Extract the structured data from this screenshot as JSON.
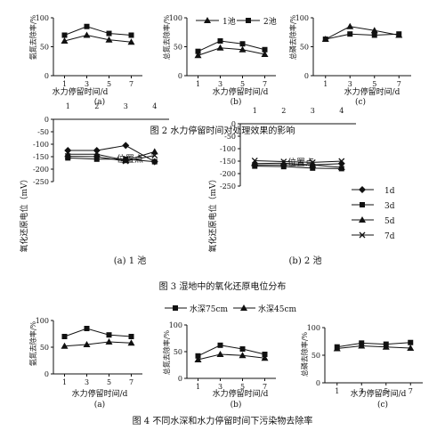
{
  "fig2": {
    "caption": "图 2   水力停留时间对处理效果的影响",
    "legend": [
      "1池",
      "2池"
    ],
    "xlabel": "水力停留时间/d",
    "xticks": [
      "1",
      "3",
      "5",
      "7"
    ],
    "yticks": [
      "0",
      "50",
      "100"
    ],
    "panels": [
      {
        "letter": "(a)",
        "ylabel": "氨氮去除率/%"
      },
      {
        "letter": "(b)",
        "ylabel": "总氮去除率/%"
      },
      {
        "letter": "(c)",
        "ylabel": "总磷去除率/%"
      }
    ]
  },
  "fig3": {
    "caption": "图 3   湿地中的氧化还原电位分布",
    "position_label": "位置点",
    "ylabel": "氧化还原电位（mV）",
    "xticks": [
      "1",
      "2",
      "3",
      "4"
    ],
    "yticks": [
      "0",
      "-50",
      "-100",
      "-150",
      "-200",
      "-250"
    ],
    "panels": [
      {
        "letter": "(a) 1 池"
      },
      {
        "letter": "(b) 2 池"
      }
    ],
    "legend": [
      "1d",
      "3d",
      "5d",
      "7d"
    ]
  },
  "fig4": {
    "caption": "图 4   不同水深和水力停留时间下污染物去除率",
    "legend": [
      "水深75cm",
      "水深45cm"
    ],
    "xlabel": "水力停留时间/d",
    "xticks": [
      "1",
      "3",
      "5",
      "7"
    ],
    "yticks": [
      "0",
      "50",
      "100"
    ],
    "panels": [
      {
        "letter": "(a)",
        "ylabel": "氨氮去除率/%"
      },
      {
        "letter": "(b)",
        "ylabel": "总氮去除率/%"
      },
      {
        "letter": "(c)",
        "ylabel": "总磷去除率/%"
      }
    ]
  },
  "chart_data": [
    {
      "type": "line",
      "figure": "图 2",
      "panel": "(a)",
      "x": [
        1,
        3,
        5,
        7
      ],
      "xlabel": "水力停留时间/d",
      "ylabel": "氨氮去除率/%",
      "ylim": [
        0,
        100
      ],
      "series": [
        {
          "name": "1池",
          "values": [
            60,
            70,
            62,
            58
          ]
        },
        {
          "name": "2池",
          "values": [
            70,
            85,
            73,
            70
          ]
        }
      ]
    },
    {
      "type": "line",
      "figure": "图 2",
      "panel": "(b)",
      "x": [
        1,
        3,
        5,
        7
      ],
      "xlabel": "水力停留时间/d",
      "ylabel": "总氮去除率/%",
      "ylim": [
        0,
        100
      ],
      "series": [
        {
          "name": "1池",
          "values": [
            35,
            48,
            45,
            37
          ]
        },
        {
          "name": "2池",
          "values": [
            42,
            60,
            55,
            45
          ]
        }
      ]
    },
    {
      "type": "line",
      "figure": "图 2",
      "panel": "(c)",
      "x": [
        1,
        3,
        5,
        7
      ],
      "xlabel": "水力停留时间/d",
      "ylabel": "总磷去除率/%",
      "ylim": [
        0,
        100
      ],
      "series": [
        {
          "name": "1池",
          "values": [
            63,
            85,
            78,
            70
          ]
        },
        {
          "name": "2池",
          "values": [
            63,
            72,
            70,
            72
          ]
        }
      ]
    },
    {
      "type": "line",
      "figure": "图 3",
      "panel": "(a) 1 池",
      "x": [
        1,
        2,
        3,
        4
      ],
      "xlabel": "位置点",
      "ylabel": "氧化还原电位（mV）",
      "ylim": [
        -250,
        0
      ],
      "series": [
        {
          "name": "1d",
          "values": [
            -125,
            -125,
            -105,
            -170
          ]
        },
        {
          "name": "3d",
          "values": [
            -155,
            -160,
            -160,
            -170
          ]
        },
        {
          "name": "5d",
          "values": [
            -140,
            -140,
            -165,
            -130
          ]
        },
        {
          "name": "7d",
          "values": [
            -148,
            -150,
            -168,
            -145
          ]
        }
      ]
    },
    {
      "type": "line",
      "figure": "图 3",
      "panel": "(b) 2 池",
      "x": [
        1,
        2,
        3,
        4
      ],
      "xlabel": "位置点",
      "ylabel": "氧化还原电位（mV）",
      "ylim": [
        -250,
        0
      ],
      "series": [
        {
          "name": "1d",
          "values": [
            -165,
            -165,
            -165,
            -160
          ]
        },
        {
          "name": "3d",
          "values": [
            -170,
            -172,
            -178,
            -180
          ]
        },
        {
          "name": "5d",
          "values": [
            -160,
            -158,
            -165,
            -175
          ]
        },
        {
          "name": "7d",
          "values": [
            -148,
            -152,
            -155,
            -150
          ]
        }
      ]
    },
    {
      "type": "line",
      "figure": "图 4",
      "panel": "(a)",
      "x": [
        1,
        3,
        5,
        7
      ],
      "xlabel": "水力停留时间/d",
      "ylabel": "氨氮去除率/%",
      "ylim": [
        0,
        100
      ],
      "series": [
        {
          "name": "水深75cm",
          "values": [
            70,
            85,
            73,
            70
          ]
        },
        {
          "name": "水深45cm",
          "values": [
            52,
            55,
            60,
            58
          ]
        }
      ]
    },
    {
      "type": "line",
      "figure": "图 4",
      "panel": "(b)",
      "x": [
        1,
        3,
        5,
        7
      ],
      "xlabel": "水力停留时间/d",
      "ylabel": "总氮去除率/%",
      "ylim": [
        0,
        100
      ],
      "series": [
        {
          "name": "水深75cm",
          "values": [
            42,
            62,
            55,
            45
          ]
        },
        {
          "name": "水深45cm",
          "values": [
            35,
            45,
            43,
            38
          ]
        }
      ]
    },
    {
      "type": "line",
      "figure": "图 4",
      "panel": "(c)",
      "x": [
        1,
        3,
        5,
        7
      ],
      "xlabel": "水力停留时间/d",
      "ylabel": "总磷去除率/%",
      "ylim": [
        0,
        100
      ],
      "series": [
        {
          "name": "水深75cm",
          "values": [
            65,
            72,
            70,
            73
          ]
        },
        {
          "name": "水深45cm",
          "values": [
            62,
            67,
            65,
            63
          ]
        }
      ]
    }
  ]
}
